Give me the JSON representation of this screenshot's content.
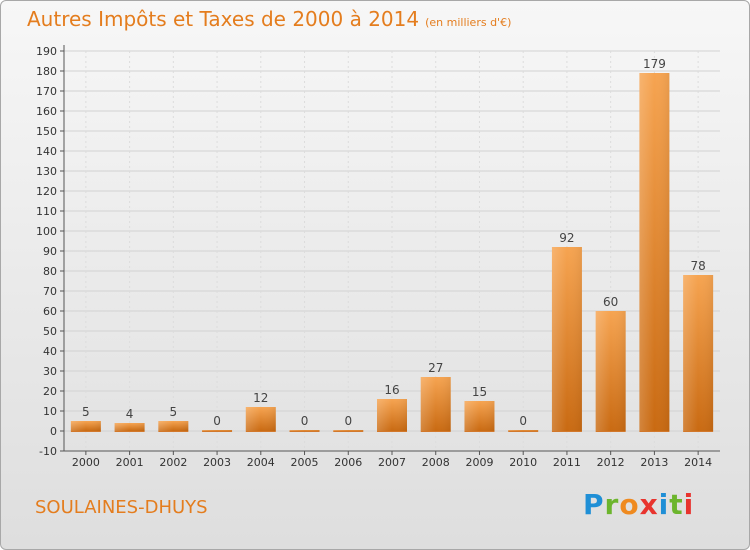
{
  "header": {
    "title": "Autres Impôts et Taxes de 2000 à 2014",
    "unit": "(en milliers d'€)"
  },
  "footer": {
    "town": "SOULAINES-DHUYS",
    "logo_letters": [
      "P",
      "r",
      "o",
      "x",
      "i",
      "t",
      "i"
    ],
    "logo_colors": [
      "#1f8fd6",
      "#6cb52d",
      "#ef8a1f",
      "#e8342e",
      "#1f8fd6",
      "#6cb52d",
      "#e8342e"
    ]
  },
  "colors": {
    "accent": "#e47d1e",
    "bar_top": "#f6a451",
    "bar_bottom": "#c96a12"
  },
  "chart_data": {
    "type": "bar",
    "title": "Autres Impôts et Taxes de 2000 à 2014",
    "subtitle": "(en milliers d'€)",
    "xlabel": "",
    "ylabel": "",
    "categories": [
      "2000",
      "2001",
      "2002",
      "2003",
      "2004",
      "2005",
      "2006",
      "2007",
      "2008",
      "2009",
      "2010",
      "2011",
      "2012",
      "2013",
      "2014"
    ],
    "values": [
      5,
      4,
      5,
      0,
      12,
      0,
      0,
      16,
      27,
      15,
      0,
      92,
      60,
      179,
      78
    ],
    "ylim": [
      -10,
      190
    ],
    "yticks": [
      -10,
      0,
      10,
      20,
      30,
      40,
      50,
      60,
      70,
      80,
      90,
      100,
      110,
      120,
      130,
      140,
      150,
      160,
      170,
      180,
      190
    ],
    "grid": true,
    "legend": "none"
  }
}
